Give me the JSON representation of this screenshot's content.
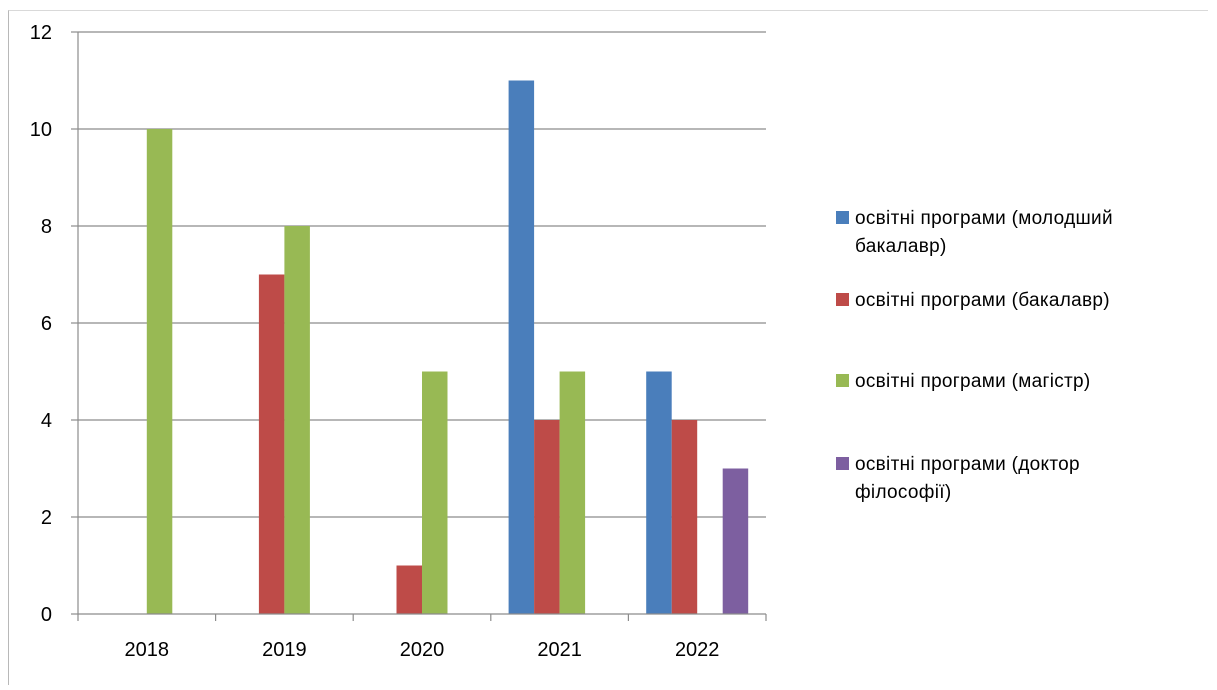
{
  "chart_data": {
    "type": "bar",
    "categories": [
      "2018",
      "2019",
      "2020",
      "2021",
      "2022"
    ],
    "series": [
      {
        "name": "освітні програми (молодший бакалавр)",
        "color": "#4a7ebb",
        "values": [
          0,
          0,
          0,
          11,
          5
        ]
      },
      {
        "name": "освітні програми (бакалавр)",
        "color": "#be4b48",
        "values": [
          0,
          7,
          1,
          4,
          4
        ]
      },
      {
        "name": "освітні програми (магістр)",
        "color": "#98b954",
        "values": [
          10,
          8,
          5,
          5,
          0
        ]
      },
      {
        "name": "освітні програми (доктор філософії)",
        "color": "#7d5fa0",
        "values": [
          0,
          0,
          0,
          0,
          3
        ]
      }
    ],
    "ylim": [
      0,
      12
    ],
    "yticks": [
      "0",
      "2",
      "4",
      "6",
      "8",
      "10",
      "12"
    ],
    "grid": true,
    "legend_position": "right",
    "title": "",
    "xlabel": "",
    "ylabel": ""
  },
  "legend": [
    {
      "line1": "освітні програми (молодший",
      "line2": "бакалавр)"
    },
    {
      "line1": "освітні програми (бакалавр)",
      "line2": ""
    },
    {
      "line1": "освітні програми (магістр)",
      "line2": ""
    },
    {
      "line1": "освітні програми (доктор",
      "line2": "філософії)"
    }
  ]
}
